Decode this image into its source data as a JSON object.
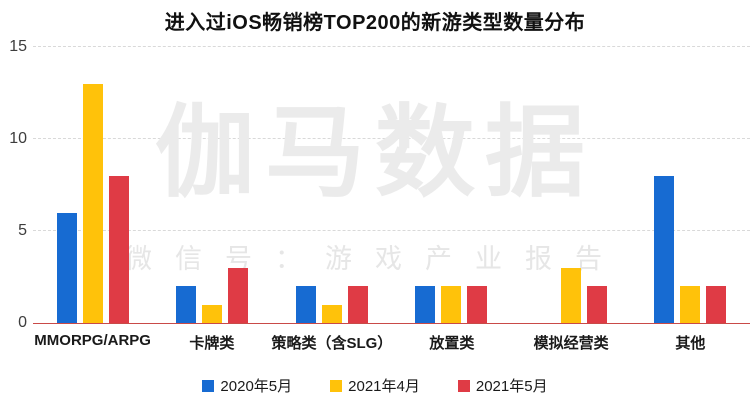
{
  "title": "进入过iOS畅销榜TOP200的新游类型数量分布",
  "watermark": {
    "line1": "伽马数据",
    "line2": "微信号：游戏产业报告"
  },
  "chart_data": {
    "type": "bar",
    "title": "进入过iOS畅销榜TOP200的新游类型数量分布",
    "categories": [
      "MMORPG/ARPG",
      "卡牌类",
      "策略类（含SLG）",
      "放置类",
      "模拟经营类",
      "其他"
    ],
    "series": [
      {
        "name": "2020年5月",
        "color": "#176BD2",
        "values": [
          6,
          2,
          2,
          2,
          0,
          8
        ]
      },
      {
        "name": "2021年4月",
        "color": "#FFC20A",
        "values": [
          13,
          1,
          1,
          2,
          3,
          2
        ]
      },
      {
        "name": "2021年5月",
        "color": "#DF3B45",
        "values": [
          8,
          3,
          2,
          2,
          2,
          2
        ]
      }
    ],
    "xlabel": "",
    "ylabel": "",
    "ylim": [
      0,
      15
    ],
    "y_ticks": [
      0,
      5,
      10,
      15
    ],
    "grid": "horizontal-dashed",
    "gridline_color": "#d9d9d9",
    "axis_line_color": "#c94a48",
    "legend_position": "bottom"
  }
}
